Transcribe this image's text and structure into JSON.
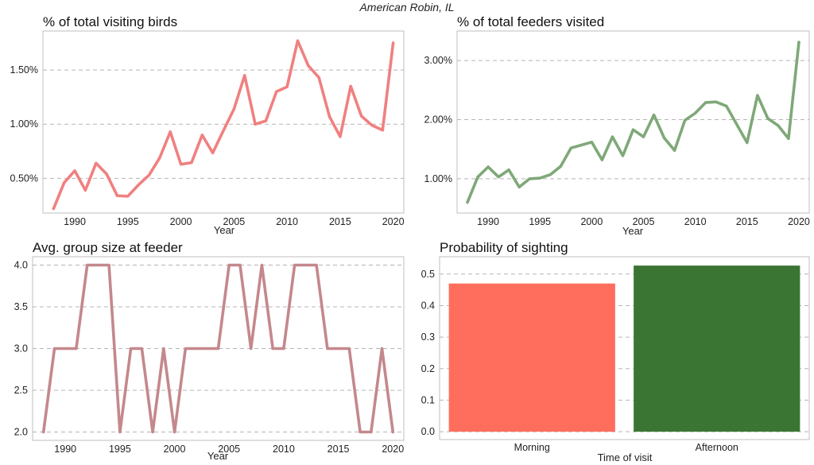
{
  "figure": {
    "suptitle": "American Robin, IL"
  },
  "chart_data": [
    {
      "id": "visiting",
      "type": "line",
      "title": "% of total visiting birds",
      "xlabel": "Year",
      "ylabel": "",
      "xlim": [
        1987,
        2021
      ],
      "ylim": [
        0.18,
        1.86
      ],
      "xticks": [
        1990,
        1995,
        2000,
        2005,
        2010,
        2015,
        2020
      ],
      "yticks": [
        0.5,
        1.0,
        1.5
      ],
      "ytick_labels": [
        "0.50%",
        "1.00%",
        "1.50%"
      ],
      "grid": "y-dashed",
      "color": "#f08080",
      "x": [
        1988,
        1989,
        1990,
        1991,
        1992,
        1993,
        1994,
        1995,
        1996,
        1997,
        1998,
        1999,
        2000,
        2001,
        2002,
        2003,
        2004,
        2005,
        2006,
        2007,
        2008,
        2009,
        2010,
        2011,
        2012,
        2013,
        2014,
        2015,
        2016,
        2017,
        2018,
        2019,
        2020
      ],
      "y": [
        0.22,
        0.46,
        0.57,
        0.39,
        0.64,
        0.54,
        0.34,
        0.335,
        0.44,
        0.53,
        0.69,
        0.93,
        0.63,
        0.645,
        0.9,
        0.735,
        0.94,
        1.14,
        1.45,
        1.0,
        1.03,
        1.3,
        1.345,
        1.77,
        1.54,
        1.43,
        1.07,
        0.885,
        1.35,
        1.075,
        0.99,
        0.945,
        1.75
      ]
    },
    {
      "id": "feeders",
      "type": "line",
      "title": "% of total feeders visited",
      "xlabel": "Year",
      "ylabel": "",
      "xlim": [
        1987,
        2021
      ],
      "ylim": [
        0.42,
        3.5
      ],
      "xticks": [
        1990,
        1995,
        2000,
        2005,
        2010,
        2015,
        2020
      ],
      "yticks": [
        1.0,
        2.0,
        3.0
      ],
      "ytick_labels": [
        "1.00%",
        "2.00%",
        "3.00%"
      ],
      "grid": "y-dashed",
      "color": "#7fa878",
      "x": [
        1988,
        1989,
        1990,
        1991,
        1992,
        1993,
        1994,
        1995,
        1996,
        1997,
        1998,
        1999,
        2000,
        2001,
        2002,
        2003,
        2004,
        2005,
        2006,
        2007,
        2008,
        2009,
        2010,
        2011,
        2012,
        2013,
        2014,
        2015,
        2016,
        2017,
        2018,
        2019,
        2020
      ],
      "y": [
        0.6,
        1.03,
        1.2,
        1.03,
        1.15,
        0.86,
        1.0,
        1.01,
        1.07,
        1.21,
        1.52,
        1.57,
        1.62,
        1.32,
        1.71,
        1.39,
        1.83,
        1.71,
        2.08,
        1.69,
        1.48,
        1.99,
        2.11,
        2.29,
        2.3,
        2.23,
        1.92,
        1.61,
        2.41,
        2.02,
        1.9,
        1.68,
        3.31
      ]
    },
    {
      "id": "groupsize",
      "type": "line",
      "title": "Avg. group size at feeder",
      "xlabel": "Year",
      "ylabel": "",
      "xlim": [
        1987,
        2021
      ],
      "ylim": [
        1.9,
        4.1
      ],
      "xticks": [
        1990,
        1995,
        2000,
        2005,
        2010,
        2015,
        2020
      ],
      "yticks": [
        2.0,
        2.5,
        3.0,
        3.5,
        4.0
      ],
      "ytick_labels": [
        "2.0",
        "2.5",
        "3.0",
        "3.5",
        "4.0"
      ],
      "grid": "y-dashed",
      "color": "#c4888c",
      "x": [
        1988,
        1989,
        1990,
        1991,
        1992,
        1993,
        1994,
        1995,
        1996,
        1997,
        1998,
        1999,
        2000,
        2001,
        2002,
        2003,
        2004,
        2005,
        2006,
        2007,
        2008,
        2009,
        2010,
        2011,
        2012,
        2013,
        2014,
        2015,
        2016,
        2017,
        2018,
        2019,
        2020
      ],
      "y": [
        2,
        3,
        3,
        3,
        4,
        4,
        4,
        2,
        3,
        3,
        2,
        3,
        2,
        3,
        3,
        3,
        3,
        4,
        4,
        3,
        4,
        3,
        3,
        4,
        4,
        4,
        3,
        3,
        3,
        2,
        2,
        3,
        2
      ]
    },
    {
      "id": "sighting",
      "type": "bar",
      "title": "Probability of sighting",
      "xlabel": "Time of visit",
      "ylabel": "",
      "categories": [
        "Morning",
        "Afternoon"
      ],
      "values": [
        0.47,
        0.527
      ],
      "colors": [
        "#ff6e5d",
        "#3b7533"
      ],
      "ylim": [
        -0.025,
        0.555
      ],
      "yticks": [
        0.0,
        0.1,
        0.2,
        0.3,
        0.4,
        0.5
      ],
      "ytick_labels": [
        "0.0",
        "0.1",
        "0.2",
        "0.3",
        "0.4",
        "0.5"
      ],
      "grid": "y-dashed"
    }
  ]
}
